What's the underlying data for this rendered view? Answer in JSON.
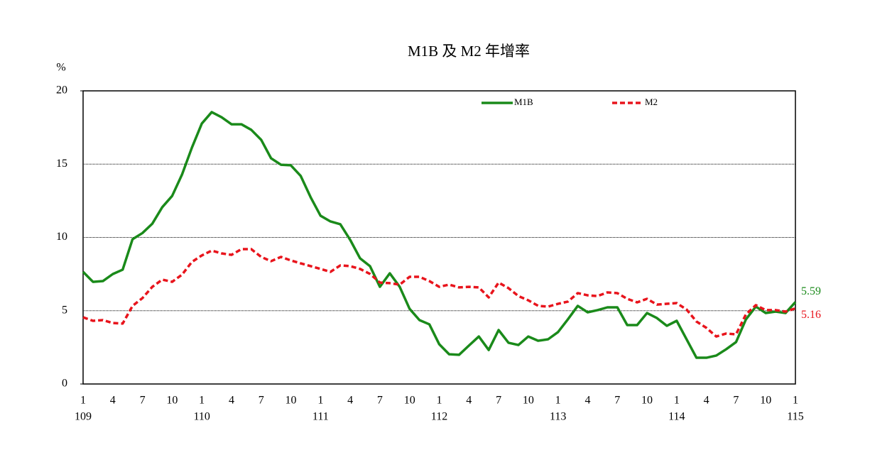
{
  "chart_data": {
    "type": "line",
    "title": "M1B 及 M2 年增率",
    "y_label": "%",
    "categories": [
      "1",
      null,
      null,
      "4",
      null,
      null,
      "7",
      null,
      null,
      "10",
      null,
      null,
      "1",
      null,
      null,
      "4",
      null,
      null,
      "7",
      null,
      null,
      "10",
      null,
      null,
      "1",
      null,
      null,
      "4",
      null,
      null,
      "7",
      null,
      null,
      "10",
      null,
      null,
      "1",
      null,
      null,
      "4",
      null,
      null,
      "7",
      null,
      null,
      "10",
      null,
      null,
      "1",
      null,
      null,
      "4",
      null,
      null,
      "7",
      null,
      null,
      "10",
      null,
      null,
      "1",
      null,
      null,
      "4",
      null,
      null,
      "7",
      null,
      null,
      "10",
      null,
      null,
      "1"
    ],
    "years": [
      "109",
      null,
      null,
      null,
      null,
      null,
      null,
      null,
      null,
      null,
      null,
      null,
      "110",
      null,
      null,
      null,
      null,
      null,
      null,
      null,
      null,
      null,
      null,
      null,
      "111",
      null,
      null,
      null,
      null,
      null,
      null,
      null,
      null,
      null,
      null,
      null,
      "112",
      null,
      null,
      null,
      null,
      null,
      null,
      null,
      null,
      null,
      null,
      null,
      "113",
      null,
      null,
      null,
      null,
      null,
      null,
      null,
      null,
      null,
      null,
      null,
      "114",
      null,
      null,
      null,
      null,
      null,
      null,
      null,
      null,
      null,
      null,
      null,
      "115"
    ],
    "series": [
      {
        "name": "M1B",
        "color": "#1a8a1a",
        "dash": false,
        "values": [
          7.65,
          6.97,
          7.02,
          7.5,
          7.8,
          9.88,
          10.3,
          10.94,
          12.06,
          12.83,
          14.29,
          16.13,
          17.77,
          18.55,
          18.2,
          17.72,
          17.72,
          17.34,
          16.66,
          15.4,
          14.96,
          14.92,
          14.19,
          12.74,
          11.48,
          11.09,
          10.9,
          9.83,
          8.57,
          8.04,
          6.63,
          7.55,
          6.63,
          5.13,
          4.36,
          4.07,
          2.71,
          2.03,
          1.99,
          2.62,
          3.24,
          2.32,
          3.68,
          2.81,
          2.66,
          3.24,
          2.95,
          3.05,
          3.54,
          4.41,
          5.33,
          4.89,
          5.04,
          5.23,
          5.23,
          4.02,
          4.02,
          4.84,
          4.5,
          3.97,
          4.31,
          3.05,
          1.79,
          1.79,
          1.94,
          2.37,
          2.86,
          4.41,
          5.28,
          4.84,
          4.94,
          4.84,
          5.59
        ]
      },
      {
        "name": "M2",
        "color": "#e8141c",
        "dash": true,
        "values": [
          4.55,
          4.31,
          4.36,
          4.16,
          4.12,
          5.33,
          5.86,
          6.63,
          7.12,
          6.97,
          7.46,
          8.33,
          8.77,
          9.1,
          8.91,
          8.81,
          9.2,
          9.2,
          8.67,
          8.38,
          8.67,
          8.43,
          8.23,
          8.04,
          7.85,
          7.65,
          8.09,
          8.04,
          7.85,
          7.51,
          6.92,
          6.88,
          6.78,
          7.31,
          7.31,
          7.02,
          6.63,
          6.78,
          6.59,
          6.63,
          6.59,
          5.91,
          6.92,
          6.54,
          6.0,
          5.71,
          5.33,
          5.28,
          5.47,
          5.62,
          6.2,
          6.05,
          6.0,
          6.25,
          6.2,
          5.81,
          5.57,
          5.81,
          5.42,
          5.47,
          5.52,
          5.08,
          4.26,
          3.83,
          3.24,
          3.44,
          3.39,
          4.75,
          5.38,
          5.04,
          5.04,
          4.94,
          5.16
        ]
      }
    ],
    "ylim": [
      0,
      20
    ],
    "yticks": [
      0,
      5,
      10,
      15,
      20
    ],
    "grid": true
  }
}
